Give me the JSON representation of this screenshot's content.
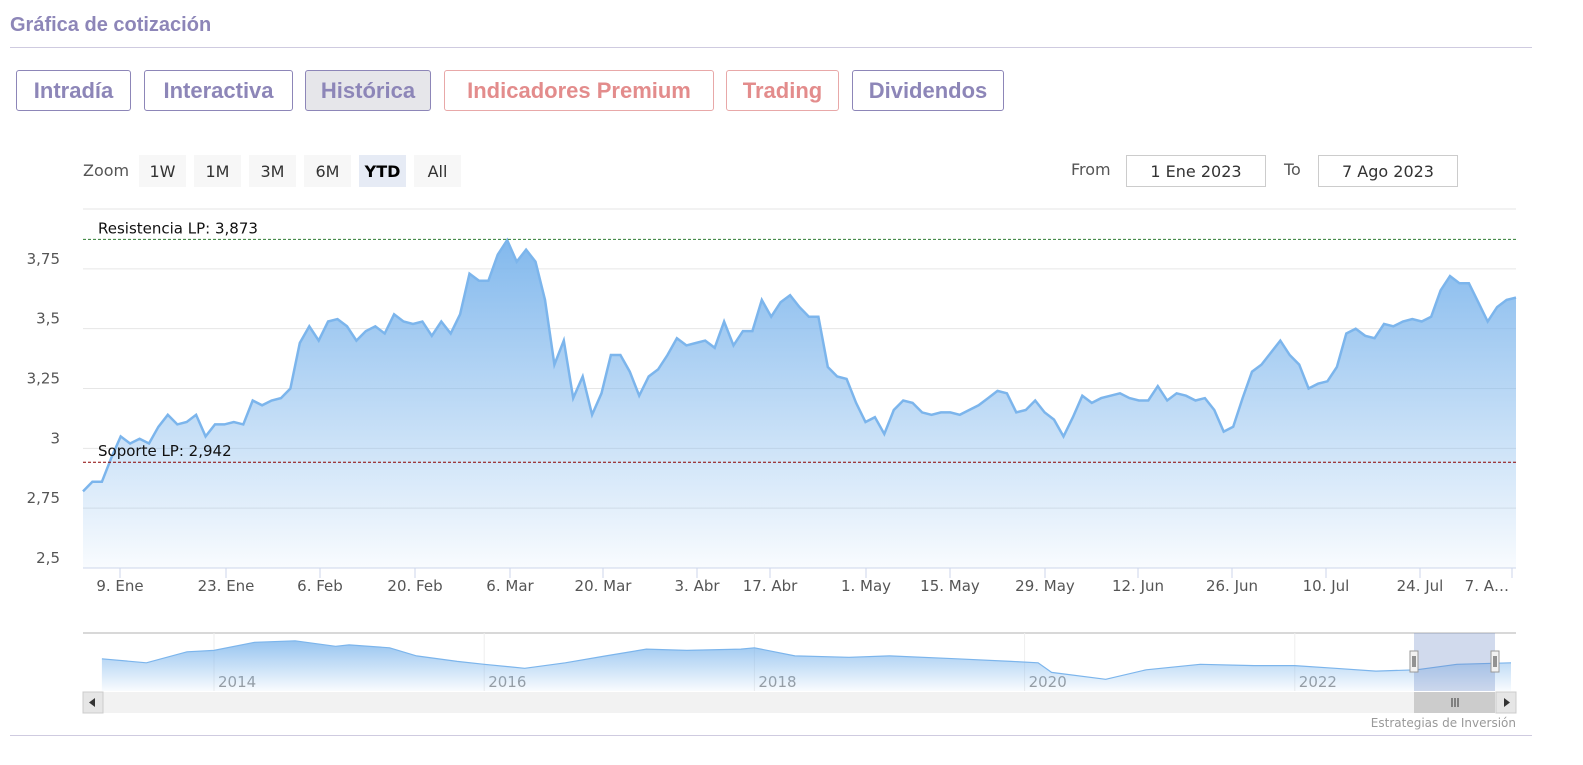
{
  "header": {
    "title": "Gráfica de cotización"
  },
  "tabs": [
    {
      "label": "Intradía",
      "style": "purple",
      "active": false
    },
    {
      "label": "Interactiva",
      "style": "purple",
      "active": false
    },
    {
      "label": "Histórica",
      "style": "purple",
      "active": true
    },
    {
      "label": "Indicadores Premium",
      "style": "red",
      "active": false
    },
    {
      "label": "Trading",
      "style": "red",
      "active": false
    },
    {
      "label": "Dividendos",
      "style": "purple",
      "active": false
    }
  ],
  "range_selector": {
    "zoom_label": "Zoom",
    "buttons": [
      "1W",
      "1M",
      "3M",
      "6M",
      "YTD",
      "All"
    ],
    "selected": "YTD",
    "from_label": "From",
    "from_value": "1 Ene 2023",
    "to_label": "To",
    "to_value": "7 Ago 2023"
  },
  "colors": {
    "accent": "#8d86b8",
    "premium": "#e38c8c",
    "series": "#7cb5ec",
    "resistance": "#2e7d32",
    "support": "#8b0000"
  },
  "chart_data": {
    "type": "area",
    "ylim": [
      2.5,
      4.0
    ],
    "y_ticks": [
      "2,5",
      "2,75",
      "3",
      "3,25",
      "3,5",
      "3,75"
    ],
    "y_tick_values": [
      2.5,
      2.75,
      3.0,
      3.25,
      3.5,
      3.75
    ],
    "x_ticks": [
      "9. Ene",
      "23. Ene",
      "6. Feb",
      "20. Feb",
      "6. Mar",
      "20. Mar",
      "3. Abr",
      "17. Abr",
      "1. May",
      "15. May",
      "29. May",
      "12. Jun",
      "26. Jun",
      "10. Jul",
      "24. Jul",
      "7. A…"
    ],
    "grid": true,
    "plot_lines": [
      {
        "label": "Resistencia LP: 3,873",
        "value": 3.873,
        "color": "#2e7d32"
      },
      {
        "label": "Soporte LP: 2,942",
        "value": 2.942,
        "color": "#8b0000"
      }
    ],
    "values": [
      2.82,
      2.86,
      2.86,
      2.96,
      3.05,
      3.02,
      3.04,
      3.02,
      3.09,
      3.14,
      3.1,
      3.11,
      3.14,
      3.05,
      3.1,
      3.1,
      3.11,
      3.1,
      3.2,
      3.18,
      3.2,
      3.21,
      3.25,
      3.44,
      3.51,
      3.45,
      3.53,
      3.54,
      3.51,
      3.45,
      3.49,
      3.51,
      3.48,
      3.56,
      3.53,
      3.52,
      3.53,
      3.47,
      3.53,
      3.48,
      3.56,
      3.73,
      3.7,
      3.7,
      3.81,
      3.87,
      3.78,
      3.83,
      3.78,
      3.62,
      3.35,
      3.45,
      3.21,
      3.3,
      3.14,
      3.23,
      3.39,
      3.39,
      3.32,
      3.22,
      3.3,
      3.33,
      3.39,
      3.46,
      3.43,
      3.44,
      3.45,
      3.42,
      3.53,
      3.43,
      3.49,
      3.49,
      3.62,
      3.55,
      3.61,
      3.64,
      3.59,
      3.55,
      3.55,
      3.34,
      3.3,
      3.29,
      3.19,
      3.11,
      3.13,
      3.06,
      3.16,
      3.2,
      3.19,
      3.15,
      3.14,
      3.15,
      3.15,
      3.14,
      3.16,
      3.18,
      3.21,
      3.24,
      3.23,
      3.15,
      3.16,
      3.2,
      3.15,
      3.12,
      3.05,
      3.13,
      3.22,
      3.19,
      3.21,
      3.22,
      3.23,
      3.21,
      3.2,
      3.2,
      3.26,
      3.2,
      3.23,
      3.22,
      3.2,
      3.21,
      3.16,
      3.07,
      3.09,
      3.21,
      3.32,
      3.35,
      3.4,
      3.45,
      3.39,
      3.35,
      3.25,
      3.27,
      3.28,
      3.34,
      3.48,
      3.5,
      3.47,
      3.46,
      3.52,
      3.51,
      3.53,
      3.54,
      3.53,
      3.55,
      3.66,
      3.72,
      3.69,
      3.69,
      3.61,
      3.53,
      3.59,
      3.62,
      3.63
    ],
    "navigator": {
      "x_ticks": [
        "2014",
        "2016",
        "2018",
        "2020",
        "2022"
      ],
      "years": [
        2013.17,
        2013.5,
        2013.8,
        2014.0,
        2014.3,
        2014.6,
        2014.9,
        2015.0,
        2015.3,
        2015.5,
        2015.8,
        2016.0,
        2016.3,
        2016.6,
        2016.9,
        2017.2,
        2017.5,
        2017.9,
        2018.0,
        2018.3,
        2018.7,
        2019.0,
        2019.5,
        2019.9,
        2020.1,
        2020.2,
        2020.6,
        2020.9,
        2021.3,
        2021.7,
        2022.0,
        2022.3,
        2022.6,
        2022.9,
        2023.2,
        2023.6
      ],
      "values": [
        3.62,
        3.4,
        4.0,
        4.08,
        4.52,
        4.6,
        4.3,
        4.38,
        4.22,
        3.78,
        3.48,
        3.32,
        3.1,
        3.4,
        3.78,
        4.15,
        4.08,
        4.15,
        4.22,
        3.78,
        3.7,
        3.78,
        3.62,
        3.48,
        3.4,
        2.88,
        2.5,
        3.02,
        3.32,
        3.25,
        3.25,
        3.1,
        2.95,
        3.02,
        3.32,
        3.4
      ],
      "selected_range": [
        "1 Ene 2023",
        "7 Ago 2023"
      ]
    },
    "credit": "Estrategias de Inversión"
  }
}
